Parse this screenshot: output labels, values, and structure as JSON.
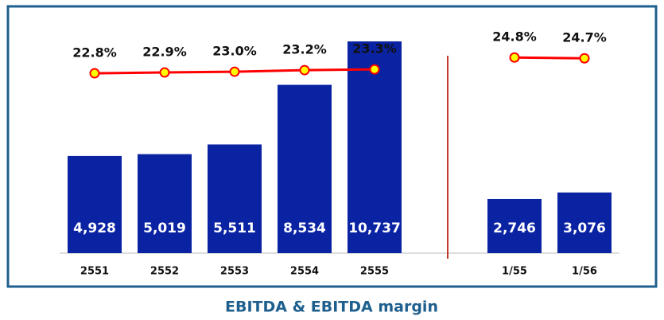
{
  "chart_data": {
    "type": "bar-line",
    "title": "EBITDA & EBITDA margin",
    "categories": [
      "2551",
      "2552",
      "2553",
      "2554",
      "2555",
      null,
      "1/55",
      "1/56"
    ],
    "series": [
      {
        "type": "bar",
        "color": "#0a23a3",
        "values": [
          4928,
          5019,
          5511,
          8534,
          10737,
          null,
          2746,
          3076
        ],
        "value_labels": [
          "4,928",
          "5,019",
          "5,511",
          "8,534",
          "10,737",
          null,
          "2,746",
          "3,076"
        ]
      },
      {
        "type": "line",
        "axis": "y2",
        "color": "#ff0000",
        "marker_color": "#ffff00",
        "values": [
          22.8,
          22.9,
          23.0,
          23.2,
          23.3,
          null,
          24.8,
          24.7
        ],
        "value_labels": [
          "22.8%",
          "22.9%",
          "23.0%",
          "23.2%",
          "23.3%",
          null,
          "24.8%",
          "24.7%"
        ]
      }
    ],
    "ylim": [
      0,
      12000
    ],
    "y2lim": [
      0,
      30
    ]
  }
}
